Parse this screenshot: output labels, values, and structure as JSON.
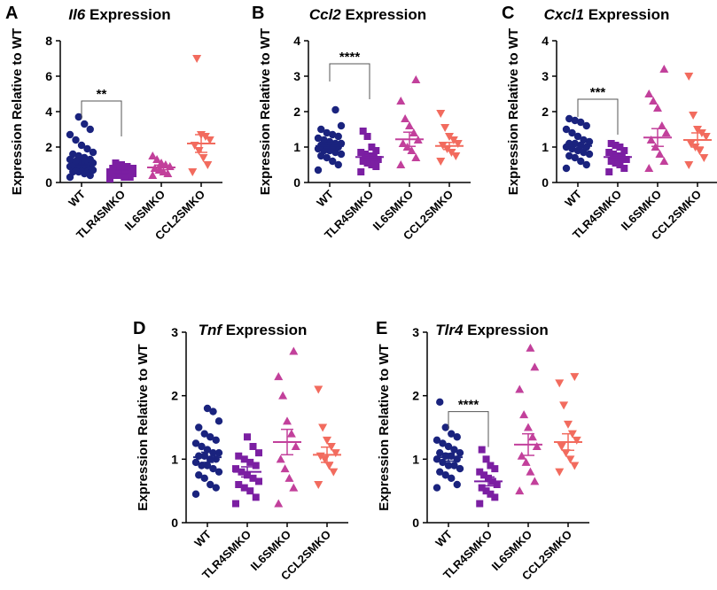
{
  "colors": {
    "WT": "#1a237e",
    "TLR4SMKO": "#7b1fa2",
    "IL6SMKO": "#c2409b",
    "CCL2SMKO": "#f26b5e"
  },
  "marker_shapes": {
    "WT": "circle",
    "TLR4SMKO": "square",
    "IL6SMKO": "triangle-up",
    "CCL2SMKO": "triangle-down"
  },
  "chart_data": [
    {
      "panel": "A",
      "type": "scatter",
      "title_gene": "Il6",
      "title_rest": " Expression",
      "ylabel": "Expression Relative to WT",
      "categories": [
        "WT",
        "TLR4SMKO",
        "IL6SMKO",
        "CCL2SMKO"
      ],
      "ylim": [
        0,
        8
      ],
      "yticks": [
        0,
        2,
        4,
        6,
        8
      ],
      "series": [
        {
          "name": "WT",
          "values": [
            0.3,
            0.4,
            0.5,
            0.6,
            0.6,
            0.7,
            0.7,
            0.8,
            0.8,
            0.9,
            0.9,
            1.0,
            1.0,
            1.0,
            1.1,
            1.1,
            1.2,
            1.2,
            1.3,
            1.3,
            1.4,
            1.5,
            1.6,
            1.7,
            1.9,
            2.1,
            2.4,
            2.7,
            3.0,
            3.3,
            3.7
          ],
          "mean": 1.2,
          "sem_low": 1.0,
          "sem_high": 1.4
        },
        {
          "name": "TLR4SMKO",
          "values": [
            0.2,
            0.3,
            0.3,
            0.4,
            0.4,
            0.5,
            0.5,
            0.5,
            0.6,
            0.6,
            0.6,
            0.7,
            0.7,
            0.8,
            0.8,
            0.9,
            1.0,
            1.1
          ],
          "mean": 0.6,
          "sem_low": 0.5,
          "sem_high": 0.7
        },
        {
          "name": "IL6SMKO",
          "values": [
            0.4,
            0.5,
            0.6,
            0.7,
            0.8,
            0.9,
            1.0,
            1.1,
            1.3,
            1.5
          ],
          "mean": 0.85,
          "sem_low": 0.72,
          "sem_high": 0.98
        },
        {
          "name": "CCL2SMKO",
          "values": [
            0.6,
            1.0,
            1.4,
            1.8,
            2.1,
            2.4,
            2.6,
            2.7,
            7.0
          ],
          "mean": 2.2,
          "sem_low": 1.7,
          "sem_high": 2.7
        }
      ],
      "significance": {
        "from": "WT",
        "to": "TLR4SMKO",
        "label": "**",
        "y": 4.6
      }
    },
    {
      "panel": "B",
      "type": "scatter",
      "title_gene": "Ccl2",
      "title_rest": " Expression",
      "ylabel": "Expression Relative to WT",
      "categories": [
        "WT",
        "TLR4SMKO",
        "IL6SMKO",
        "CCL2SMKO"
      ],
      "ylim": [
        0,
        4
      ],
      "yticks": [
        0,
        1,
        2,
        3,
        4
      ],
      "series": [
        {
          "name": "WT",
          "values": [
            0.35,
            0.5,
            0.6,
            0.7,
            0.75,
            0.8,
            0.85,
            0.9,
            0.9,
            0.95,
            1.0,
            1.0,
            1.05,
            1.05,
            1.1,
            1.1,
            1.15,
            1.2,
            1.25,
            1.3,
            1.35,
            1.4,
            1.5,
            1.6,
            2.05
          ],
          "mean": 1.03,
          "sem_low": 0.95,
          "sem_high": 1.11
        },
        {
          "name": "TLR4SMKO",
          "values": [
            0.3,
            0.45,
            0.5,
            0.55,
            0.6,
            0.65,
            0.7,
            0.75,
            0.8,
            0.85,
            0.9,
            1.0,
            1.3,
            1.45
          ],
          "mean": 0.72,
          "sem_low": 0.64,
          "sem_high": 0.8
        },
        {
          "name": "IL6SMKO",
          "values": [
            0.5,
            0.7,
            0.9,
            1.0,
            1.1,
            1.2,
            1.4,
            1.6,
            1.8,
            2.3,
            2.9
          ],
          "mean": 1.22,
          "sem_low": 1.02,
          "sem_high": 1.42
        },
        {
          "name": "CCL2SMKO",
          "values": [
            0.6,
            0.75,
            0.85,
            0.95,
            1.05,
            1.1,
            1.2,
            1.3,
            1.55,
            1.95
          ],
          "mean": 1.03,
          "sem_low": 0.93,
          "sem_high": 1.13
        }
      ],
      "significance": {
        "from": "WT",
        "to": "TLR4SMKO",
        "label": "****",
        "y": 3.35
      }
    },
    {
      "panel": "C",
      "type": "scatter",
      "title_gene": "Cxcl1",
      "title_rest": " Expression",
      "ylabel": "Expression Relative to WT",
      "categories": [
        "WT",
        "TLR4SMKO",
        "IL6SMKO",
        "CCL2SMKO"
      ],
      "ylim": [
        0,
        4
      ],
      "yticks": [
        0,
        1,
        2,
        3,
        4
      ],
      "series": [
        {
          "name": "WT",
          "values": [
            0.4,
            0.5,
            0.6,
            0.7,
            0.75,
            0.8,
            0.85,
            0.9,
            0.95,
            1.0,
            1.0,
            1.05,
            1.1,
            1.1,
            1.15,
            1.2,
            1.3,
            1.4,
            1.5,
            1.6,
            1.7,
            1.75,
            1.8
          ],
          "mean": 1.03,
          "sem_low": 0.95,
          "sem_high": 1.11
        },
        {
          "name": "TLR4SMKO",
          "values": [
            0.3,
            0.4,
            0.5,
            0.55,
            0.6,
            0.65,
            0.7,
            0.75,
            0.8,
            0.85,
            0.9,
            1.0,
            1.05,
            1.1
          ],
          "mean": 0.72,
          "sem_low": 0.64,
          "sem_high": 0.8
        },
        {
          "name": "IL6SMKO",
          "values": [
            0.4,
            0.6,
            0.8,
            1.0,
            1.2,
            1.4,
            1.6,
            2.1,
            2.3,
            2.5,
            3.2
          ],
          "mean": 1.27,
          "sem_low": 1.02,
          "sem_high": 1.52
        },
        {
          "name": "CCL2SMKO",
          "values": [
            0.5,
            0.7,
            0.9,
            1.0,
            1.1,
            1.3,
            1.4,
            1.5,
            1.9,
            3.0
          ],
          "mean": 1.2,
          "sem_low": 1.0,
          "sem_high": 1.4
        }
      ],
      "significance": {
        "from": "WT",
        "to": "TLR4SMKO",
        "label": "***",
        "y": 2.35
      }
    },
    {
      "panel": "D",
      "type": "scatter",
      "title_gene": "Tnf",
      "title_rest": " Expression",
      "ylabel": "Expression Relative to WT",
      "categories": [
        "WT",
        "TLR4SMKO",
        "IL6SMKO",
        "CCL2SMKO"
      ],
      "ylim": [
        0,
        3
      ],
      "yticks": [
        0,
        1,
        2,
        3
      ],
      "series": [
        {
          "name": "WT",
          "values": [
            0.45,
            0.55,
            0.6,
            0.7,
            0.75,
            0.8,
            0.85,
            0.9,
            0.9,
            0.95,
            1.0,
            1.0,
            1.05,
            1.05,
            1.1,
            1.1,
            1.15,
            1.2,
            1.25,
            1.3,
            1.35,
            1.4,
            1.5,
            1.6,
            1.75,
            1.8
          ],
          "mean": 1.03,
          "sem_low": 0.95,
          "sem_high": 1.11
        },
        {
          "name": "TLR4SMKO",
          "values": [
            0.3,
            0.4,
            0.5,
            0.55,
            0.6,
            0.65,
            0.7,
            0.75,
            0.8,
            0.85,
            0.9,
            0.95,
            1.0,
            1.05,
            1.1,
            1.2,
            1.35
          ],
          "mean": 0.8,
          "sem_low": 0.72,
          "sem_high": 0.88
        },
        {
          "name": "IL6SMKO",
          "values": [
            0.3,
            0.55,
            0.7,
            0.85,
            1.0,
            1.2,
            1.4,
            1.6,
            2.0,
            2.3,
            2.7
          ],
          "mean": 1.27,
          "sem_low": 1.07,
          "sem_high": 1.47
        },
        {
          "name": "CCL2SMKO",
          "values": [
            0.6,
            0.8,
            0.9,
            1.0,
            1.05,
            1.1,
            1.2,
            1.3,
            1.5,
            2.1
          ],
          "mean": 1.07,
          "sem_low": 0.95,
          "sem_high": 1.19
        }
      ]
    },
    {
      "panel": "E",
      "type": "scatter",
      "title_gene": "Tlr4",
      "title_rest": " Expression",
      "ylabel": "Expression Relative to WT",
      "categories": [
        "WT",
        "TLR4SMKO",
        "IL6SMKO",
        "CCL2SMKO"
      ],
      "ylim": [
        0,
        3
      ],
      "yticks": [
        0,
        1,
        2,
        3
      ],
      "series": [
        {
          "name": "WT",
          "values": [
            0.55,
            0.6,
            0.7,
            0.75,
            0.8,
            0.85,
            0.9,
            0.9,
            0.95,
            1.0,
            1.0,
            1.05,
            1.05,
            1.1,
            1.1,
            1.15,
            1.2,
            1.25,
            1.3,
            1.35,
            1.4,
            1.5,
            1.9
          ],
          "mean": 1.03,
          "sem_low": 0.97,
          "sem_high": 1.09
        },
        {
          "name": "TLR4SMKO",
          "values": [
            0.3,
            0.4,
            0.45,
            0.5,
            0.55,
            0.6,
            0.65,
            0.7,
            0.75,
            0.8,
            0.85,
            0.9,
            1.0,
            1.15
          ],
          "mean": 0.65,
          "sem_low": 0.58,
          "sem_high": 0.72
        },
        {
          "name": "IL6SMKO",
          "values": [
            0.5,
            0.65,
            0.8,
            0.95,
            1.05,
            1.2,
            1.35,
            1.5,
            1.7,
            2.1,
            2.45,
            2.75
          ],
          "mean": 1.23,
          "sem_low": 1.06,
          "sem_high": 1.4
        },
        {
          "name": "CCL2SMKO",
          "values": [
            0.8,
            0.9,
            1.0,
            1.1,
            1.2,
            1.3,
            1.4,
            1.55,
            1.85,
            2.2,
            2.3
          ],
          "mean": 1.27,
          "sem_low": 1.14,
          "sem_high": 1.4
        }
      ],
      "significance": {
        "from": "WT",
        "to": "TLR4SMKO",
        "label": "****",
        "y": 1.75
      }
    }
  ]
}
